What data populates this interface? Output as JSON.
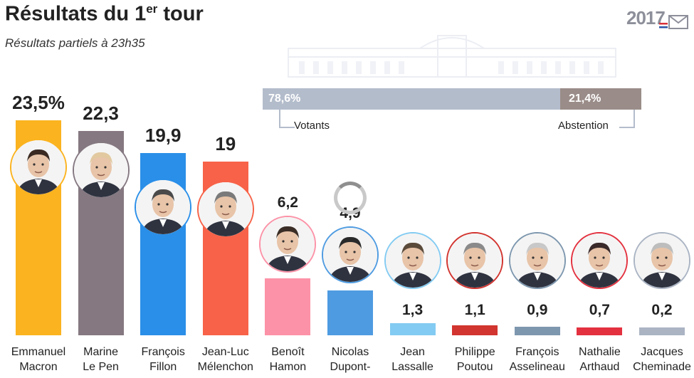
{
  "header": {
    "title": "Résultats du 1",
    "title_sup": "er",
    "title_end": " tour",
    "subtitle": "Résultats partiels à 23h35",
    "logo_text": "2017"
  },
  "turnout": {
    "voters_label": "Votants",
    "voters_value_text": "78,6%",
    "voters_pct": 78.6,
    "abstention_label": "Abstention",
    "abstention_value_text": "21,4%",
    "abstention_pct": 21.4,
    "voters_color": "#b3bccb",
    "abstention_color": "#9a8c88"
  },
  "chart_data": {
    "type": "bar",
    "categories": [
      "Emmanuel Macron",
      "Marine Le Pen",
      "François Fillon",
      "Jean-Luc Mélenchon",
      "Benoît Hamon",
      "Nicolas Dupont-Aignan",
      "Jean Lassalle",
      "Philippe Poutou",
      "François Asselineau",
      "Nathalie Arthaud",
      "Jacques Cheminade"
    ],
    "name_lines": [
      [
        "Emmanuel",
        "Macron"
      ],
      [
        "Marine",
        "Le Pen"
      ],
      [
        "François",
        "Fillon"
      ],
      [
        "Jean-Luc",
        "Mélenchon"
      ],
      [
        "Benoît",
        "Hamon"
      ],
      [
        "Nicolas",
        "Dupont-"
      ],
      [
        "Jean",
        "Lassalle"
      ],
      [
        "Philippe",
        "Poutou"
      ],
      [
        "François",
        "Asselineau"
      ],
      [
        "Nathalie",
        "Arthaud"
      ],
      [
        "Jacques",
        "Cheminade"
      ]
    ],
    "values": [
      23.5,
      22.3,
      19.9,
      19,
      6.2,
      4.9,
      1.3,
      1.1,
      0.9,
      0.7,
      0.2
    ],
    "value_labels": [
      "23,5%",
      "22,3",
      "19,9",
      "19",
      "6,2",
      "4,9",
      "1,3",
      "1,1",
      "0,9",
      "0,7",
      "0,2"
    ],
    "colors": [
      "#fbb31f",
      "#857881",
      "#2a8fe8",
      "#f76248",
      "#fc92a7",
      "#4e9be1",
      "#83cbf2",
      "#d2342f",
      "#7d97ae",
      "#e3313f",
      "#aab4c3"
    ],
    "ylim": [
      0,
      23.5
    ]
  },
  "avatars": [
    {
      "icon": "macron-portrait-icon"
    },
    {
      "icon": "le-pen-portrait-icon"
    },
    {
      "icon": "fillon-portrait-icon"
    },
    {
      "icon": "melenchon-portrait-icon"
    },
    {
      "icon": "hamon-portrait-icon"
    },
    {
      "icon": "dupont-aignan-portrait-icon"
    },
    {
      "icon": "lassalle-portrait-icon"
    },
    {
      "icon": "poutou-portrait-icon"
    },
    {
      "icon": "asselineau-portrait-icon"
    },
    {
      "icon": "arthaud-portrait-icon"
    },
    {
      "icon": "cheminade-portrait-icon"
    }
  ]
}
